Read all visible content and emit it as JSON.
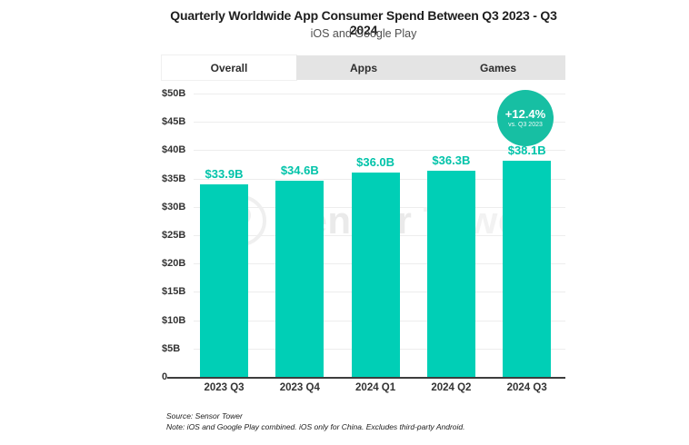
{
  "header": {
    "title": "Quarterly Worldwide App Consumer Spend Between Q3 2023 - Q3 2024",
    "subtitle": "iOS and Google Play"
  },
  "tabs": [
    {
      "label": "Overall",
      "active": true
    },
    {
      "label": "Apps",
      "active": false
    },
    {
      "label": "Games",
      "active": false
    }
  ],
  "chart_data": {
    "type": "bar",
    "title": "Quarterly Worldwide App Consumer Spend Between Q3 2023 - Q3 2024",
    "subtitle": "iOS and Google Play",
    "categories": [
      "2023 Q3",
      "2023 Q4",
      "2024 Q1",
      "2024 Q2",
      "2024 Q3"
    ],
    "values": [
      33.9,
      34.6,
      36.0,
      36.3,
      38.1
    ],
    "bar_labels": [
      "$33.9B",
      "$34.6B",
      "$36.0B",
      "$36.3B",
      "$38.1B"
    ],
    "unit": "billions USD",
    "ylim": [
      0,
      50
    ],
    "ytick_step": 5,
    "yticks": [
      {
        "v": 50,
        "label": "$50B"
      },
      {
        "v": 45,
        "label": "$45B"
      },
      {
        "v": 40,
        "label": "$40B"
      },
      {
        "v": 35,
        "label": "$35B"
      },
      {
        "v": 30,
        "label": "$30B"
      },
      {
        "v": 25,
        "label": "$25B"
      },
      {
        "v": 20,
        "label": "$20B"
      },
      {
        "v": 15,
        "label": "$15B"
      },
      {
        "v": 10,
        "label": "$10B"
      },
      {
        "v": 5,
        "label": "$5B"
      },
      {
        "v": 0,
        "label": "0"
      }
    ],
    "grid": true,
    "legend": "none",
    "colors": {
      "bar": "#00CFB6",
      "value_label": "#00C3A9",
      "axis_text": "#333333",
      "gridline": "#EDEDED",
      "axis_line": "#3d3d3d"
    }
  },
  "badge": {
    "value": "+12.4%",
    "caption": "vs. Q3 2023",
    "color": "#17BFA3"
  },
  "watermark": {
    "text_primary": "Sensor",
    "text_secondary": "Tower"
  },
  "footer": {
    "source": "Source: Sensor Tower",
    "note": "Note: iOS and Google Play combined. iOS only for China. Excludes third-party Android."
  }
}
